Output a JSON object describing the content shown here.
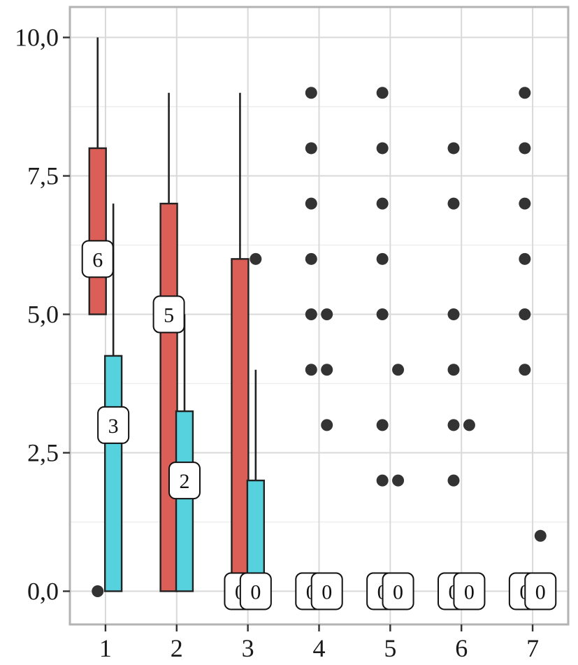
{
  "chart_data": {
    "type": "boxplot",
    "title": "",
    "xlabel": "",
    "ylabel": "",
    "categories": [
      "1",
      "2",
      "3",
      "4",
      "5",
      "6",
      "7"
    ],
    "x_tick_labels": [
      "1",
      "2",
      "3",
      "4",
      "5",
      "6",
      "7"
    ],
    "y_tick_labels": [
      "0,0",
      "2,5",
      "5,0",
      "7,5",
      "10,0"
    ],
    "y_ticks": [
      0,
      2.5,
      5,
      7.5,
      10
    ],
    "ylim": [
      -0.6,
      10.55
    ],
    "grid": true,
    "legend": "none",
    "colors": {
      "red": "#DB5F57",
      "teal": "#55D2DD",
      "outline": "#222222",
      "grid": "#d9d9d9",
      "frame": "#b3b3b3"
    },
    "series": [
      {
        "color": "#DB5F57",
        "boxes": [
          {
            "category": "1",
            "q1": 5,
            "median": 6,
            "q3": 8,
            "whisker_low": 5,
            "whisker_high": 10,
            "median_label": "6",
            "outliers": [
              0
            ]
          },
          {
            "category": "2",
            "q1": 0,
            "median": 5,
            "q3": 7,
            "whisker_low": 0,
            "whisker_high": 9,
            "median_label": "5",
            "outliers": []
          },
          {
            "category": "3",
            "q1": 0,
            "median": 0,
            "q3": 6,
            "whisker_low": 0,
            "whisker_high": 9,
            "median_label": "0",
            "outliers": []
          },
          {
            "category": "4",
            "q1": 0,
            "median": 0,
            "q3": 0,
            "whisker_low": 0,
            "whisker_high": 0,
            "median_label": "0",
            "outliers": [
              4,
              5,
              6,
              7,
              8,
              9
            ]
          },
          {
            "category": "5",
            "q1": 0,
            "median": 0,
            "q3": 0,
            "whisker_low": 0,
            "whisker_high": 0,
            "median_label": "0",
            "outliers": [
              2,
              3,
              5,
              6,
              7,
              8,
              9
            ]
          },
          {
            "category": "6",
            "q1": 0,
            "median": 0,
            "q3": 0,
            "whisker_low": 0,
            "whisker_high": 0,
            "median_label": "0",
            "outliers": [
              2,
              3,
              4,
              5,
              7,
              8
            ]
          },
          {
            "category": "7",
            "q1": 0,
            "median": 0,
            "q3": 0,
            "whisker_low": 0,
            "whisker_high": 0,
            "median_label": "0",
            "outliers": [
              4,
              5,
              6,
              7,
              8,
              9
            ]
          }
        ]
      },
      {
        "color": "#55D2DD",
        "boxes": [
          {
            "category": "1",
            "q1": 0,
            "median": 3,
            "q3": 4.25,
            "whisker_low": 0,
            "whisker_high": 7,
            "median_label": "3",
            "outliers": []
          },
          {
            "category": "2",
            "q1": 0,
            "median": 2,
            "q3": 3.25,
            "whisker_low": 0,
            "whisker_high": 5,
            "median_label": "2",
            "outliers": []
          },
          {
            "category": "3",
            "q1": 0,
            "median": 0,
            "q3": 2,
            "whisker_low": 0,
            "whisker_high": 4,
            "median_label": "0",
            "outliers": [
              6
            ]
          },
          {
            "category": "4",
            "q1": 0,
            "median": 0,
            "q3": 0,
            "whisker_low": 0,
            "whisker_high": 0,
            "median_label": "0",
            "outliers": [
              3,
              4,
              5
            ]
          },
          {
            "category": "5",
            "q1": 0,
            "median": 0,
            "q3": 0,
            "whisker_low": 0,
            "whisker_high": 0,
            "median_label": "0",
            "outliers": [
              2,
              4
            ]
          },
          {
            "category": "6",
            "q1": 0,
            "median": 0,
            "q3": 0,
            "whisker_low": 0,
            "whisker_high": 0,
            "median_label": "0",
            "outliers": [
              3
            ]
          },
          {
            "category": "7",
            "q1": 0,
            "median": 0,
            "q3": 0,
            "whisker_low": 0,
            "whisker_high": 0,
            "median_label": "0",
            "outliers": [
              1
            ]
          }
        ]
      }
    ]
  }
}
